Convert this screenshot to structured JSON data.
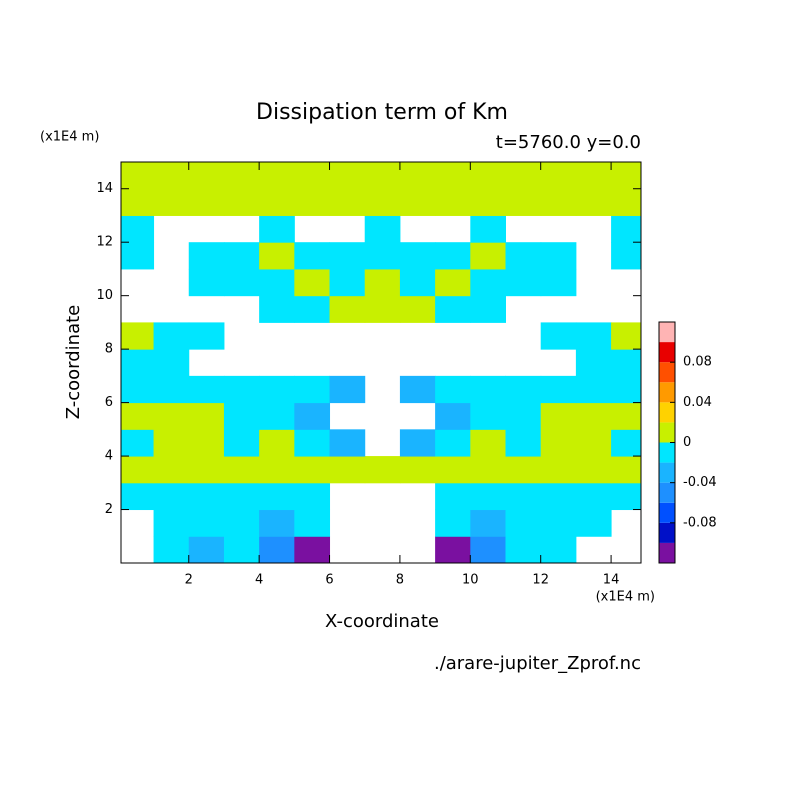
{
  "chart_data": {
    "type": "contour",
    "title": "Dissipation term of Km",
    "subtitle": "t=5760.0 y=0.0",
    "x_label": "X-coordinate",
    "y_label": "Z-coordinate",
    "x_unit": "(x1E4 m)",
    "y_unit": "(x1E4 m)",
    "file_label": "./arare-jupiter_Zprof.nc",
    "xlim": [
      0.075,
      14.85
    ],
    "ylim": [
      0,
      15
    ],
    "xticks": [
      2,
      4,
      6,
      8,
      10,
      12,
      14
    ],
    "yticks": [
      2,
      4,
      6,
      8,
      10,
      12,
      14
    ],
    "x": [
      0.5,
      1.5,
      2.5,
      3.5,
      4.5,
      5.5,
      6.5,
      7.5,
      8.5,
      9.5,
      10.5,
      11.5,
      12.5,
      13.5,
      14.5
    ],
    "y": [
      0.5,
      1.5,
      2.5,
      3.5,
      4.5,
      5.5,
      6.5,
      7.5,
      8.5,
      9.5,
      10.5,
      11.5,
      12.5,
      13.5,
      14.5
    ],
    "z": [
      [
        null,
        -0.01,
        -0.03,
        -0.01,
        -0.05,
        -0.11,
        null,
        null,
        null,
        -0.11,
        -0.05,
        -0.01,
        -0.01,
        null,
        null
      ],
      [
        null,
        -0.01,
        -0.01,
        -0.01,
        -0.03,
        -0.01,
        null,
        null,
        null,
        -0.01,
        -0.03,
        -0.01,
        -0.01,
        -0.01,
        null
      ],
      [
        -0.01,
        -0.01,
        -0.01,
        -0.01,
        -0.01,
        -0.01,
        null,
        null,
        null,
        -0.01,
        -0.01,
        -0.01,
        -0.01,
        -0.01,
        -0.01
      ],
      [
        0.01,
        0.01,
        0.01,
        0.01,
        0.01,
        0.01,
        0.01,
        0.01,
        0.01,
        0.01,
        0.01,
        0.01,
        0.01,
        0.01,
        0.01
      ],
      [
        -0.01,
        0.01,
        0.01,
        -0.01,
        0.01,
        -0.01,
        -0.03,
        null,
        -0.03,
        -0.01,
        0.01,
        -0.01,
        0.01,
        0.01,
        -0.01
      ],
      [
        0.01,
        0.01,
        0.01,
        -0.01,
        -0.01,
        -0.03,
        null,
        null,
        null,
        -0.03,
        -0.01,
        -0.01,
        0.01,
        0.01,
        0.01
      ],
      [
        -0.01,
        -0.01,
        -0.01,
        -0.01,
        -0.01,
        -0.01,
        -0.03,
        null,
        -0.03,
        -0.01,
        -0.01,
        -0.01,
        -0.01,
        -0.01,
        -0.01
      ],
      [
        -0.01,
        -0.01,
        null,
        null,
        null,
        null,
        null,
        null,
        null,
        null,
        null,
        null,
        null,
        -0.01,
        -0.01
      ],
      [
        0.01,
        -0.01,
        -0.01,
        null,
        null,
        null,
        null,
        null,
        null,
        null,
        null,
        null,
        -0.01,
        -0.01,
        0.01
      ],
      [
        null,
        null,
        null,
        null,
        -0.01,
        -0.01,
        0.01,
        0.01,
        0.01,
        -0.01,
        -0.01,
        null,
        null,
        null,
        null
      ],
      [
        null,
        null,
        -0.01,
        -0.01,
        -0.01,
        0.01,
        -0.01,
        0.01,
        -0.01,
        0.01,
        -0.01,
        -0.01,
        -0.01,
        null,
        null
      ],
      [
        -0.01,
        null,
        -0.01,
        -0.01,
        0.01,
        -0.01,
        -0.01,
        -0.01,
        -0.01,
        -0.01,
        0.01,
        -0.01,
        -0.01,
        null,
        -0.01
      ],
      [
        -0.01,
        null,
        null,
        null,
        -0.01,
        null,
        null,
        -0.01,
        null,
        null,
        -0.01,
        null,
        null,
        null,
        -0.01
      ],
      [
        0.01,
        0.01,
        0.01,
        0.01,
        0.01,
        0.01,
        0.01,
        0.01,
        0.01,
        0.01,
        0.01,
        0.01,
        0.01,
        0.01,
        0.01
      ],
      [
        0.01,
        0.01,
        0.01,
        0.01,
        0.01,
        0.01,
        0.01,
        0.01,
        0.01,
        0.01,
        0.01,
        0.01,
        0.01,
        0.01,
        0.01
      ]
    ],
    "levels": [
      -0.1,
      -0.08,
      -0.06,
      -0.04,
      -0.02,
      0,
      0.02,
      0.04,
      0.06,
      0.08,
      0.1
    ],
    "colors": [
      "#7a10a0",
      "#0010c8",
      "#0050ff",
      "#1e90ff",
      "#1ab4ff",
      "#00e6ff",
      "#c8f000",
      "#ffd200",
      "#ff9a00",
      "#ff5000",
      "#e80000",
      "#ffb4b4"
    ],
    "colorbar_ticks": [
      -0.08,
      -0.04,
      0,
      0.04,
      0.08
    ]
  }
}
